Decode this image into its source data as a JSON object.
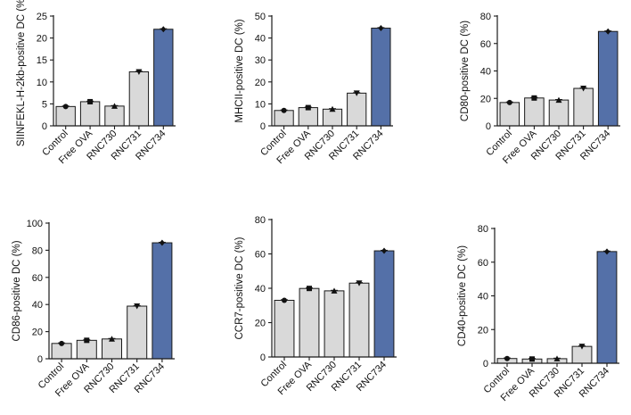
{
  "chart_data": [
    {
      "type": "bar",
      "title": "",
      "xlabel": "",
      "ylabel": "SIINFEKL-H-2kb-positive DC (%)",
      "categories": [
        "Control",
        "Free OVA",
        "RNC730",
        "RNC731",
        "RNC734"
      ],
      "values": [
        4.4,
        5.5,
        4.5,
        12.3,
        22.0
      ],
      "ylim": [
        0,
        25
      ],
      "yticks": [
        0,
        5,
        10,
        15,
        20,
        25
      ],
      "markers": [
        "circle",
        "square",
        "triangle-up",
        "triangle-down",
        "diamond"
      ],
      "highlight_index": 4
    },
    {
      "type": "bar",
      "title": "",
      "xlabel": "",
      "ylabel": "MHCII-positive DC (%)",
      "categories": [
        "Control",
        "Free OVA",
        "RNC730",
        "RNC731",
        "RNC734"
      ],
      "values": [
        7.0,
        8.3,
        7.6,
        14.9,
        44.5
      ],
      "ylim": [
        0,
        50
      ],
      "yticks": [
        0,
        10,
        20,
        30,
        40,
        50
      ],
      "markers": [
        "circle",
        "square",
        "triangle-up",
        "triangle-down",
        "diamond"
      ],
      "highlight_index": 4
    },
    {
      "type": "bar",
      "title": "",
      "xlabel": "",
      "ylabel": "CD80-positive DC (%)",
      "categories": [
        "Control",
        "Free OVA",
        "RNC730",
        "RNC731",
        "RNC734"
      ],
      "values": [
        17.0,
        20.3,
        18.8,
        27.3,
        68.8
      ],
      "ylim": [
        0,
        80
      ],
      "yticks": [
        0,
        20,
        40,
        60,
        80
      ],
      "markers": [
        "circle",
        "square",
        "triangle-up",
        "triangle-down",
        "diamond"
      ],
      "highlight_index": 4
    },
    {
      "type": "bar",
      "title": "",
      "xlabel": "",
      "ylabel": "CD86-positive DC (%)",
      "categories": [
        "Control",
        "Free OVA",
        "RNC730",
        "RNC731",
        "RNC734"
      ],
      "values": [
        11.3,
        13.6,
        14.6,
        38.8,
        85.5
      ],
      "ylim": [
        0,
        100
      ],
      "yticks": [
        0,
        20,
        40,
        60,
        80,
        100
      ],
      "markers": [
        "circle",
        "square",
        "triangle-up",
        "triangle-down",
        "diamond"
      ],
      "highlight_index": 4
    },
    {
      "type": "bar",
      "title": "",
      "xlabel": "",
      "ylabel": "CCR7-positive DC (%)",
      "categories": [
        "Control",
        "Free OVA",
        "RNC730",
        "RNC731",
        "RNC734"
      ],
      "values": [
        33.0,
        39.9,
        38.5,
        43.0,
        61.8
      ],
      "ylim": [
        0,
        80
      ],
      "yticks": [
        0,
        20,
        40,
        60,
        80
      ],
      "markers": [
        "circle",
        "square",
        "triangle-up",
        "triangle-down",
        "diamond"
      ],
      "highlight_index": 4
    },
    {
      "type": "bar",
      "title": "",
      "xlabel": "",
      "ylabel": "CD40-positive DC (%)",
      "categories": [
        "Control",
        "Free OVA",
        "RNC730",
        "RNC731",
        "RNC734"
      ],
      "values": [
        2.8,
        2.5,
        2.7,
        10.0,
        66.3
      ],
      "ylim": [
        0,
        80
      ],
      "yticks": [
        0,
        20,
        40,
        60,
        80
      ],
      "markers": [
        "circle",
        "square",
        "triangle-up",
        "triangle-down",
        "diamond"
      ],
      "highlight_index": 4
    }
  ],
  "colors": {
    "bar_fill": "#d9d9d9",
    "bar_highlight": "#5470a8",
    "outline": "#1a1a1a",
    "marker": "#111111",
    "text": "#111111"
  }
}
